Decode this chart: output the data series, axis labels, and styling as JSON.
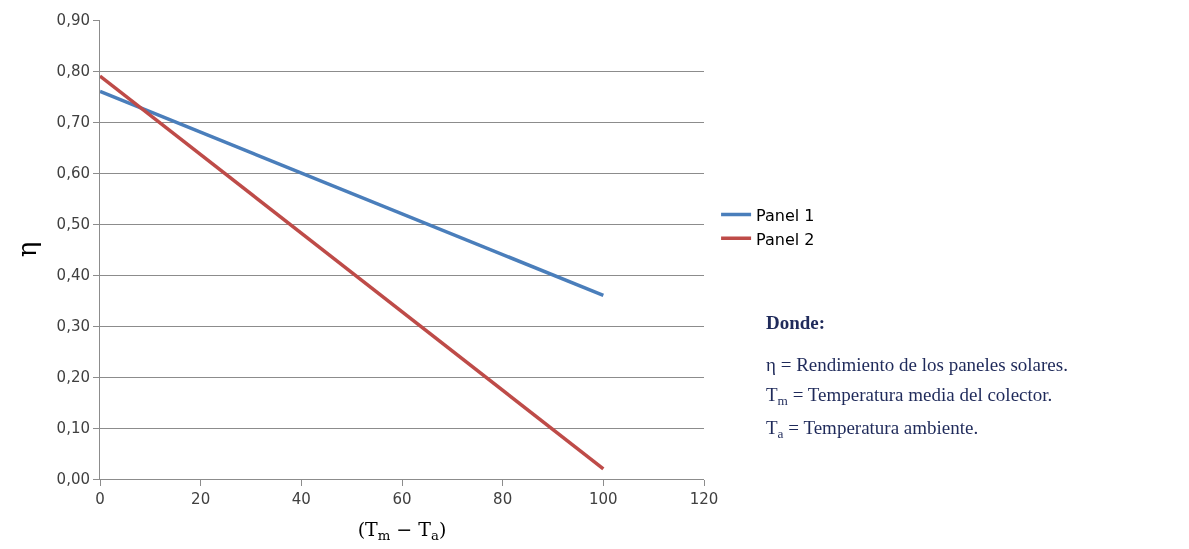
{
  "chart_data": {
    "type": "line",
    "xlabel": "(T$_{m}$ − T$_{a}$)",
    "ylabel": "η",
    "x": [
      0,
      100
    ],
    "series": [
      {
        "name": "Panel 1",
        "color": "#4a7ebb",
        "values": [
          0.76,
          0.36
        ]
      },
      {
        "name": "Panel 2",
        "color": "#be4b48",
        "values": [
          0.79,
          0.02
        ]
      }
    ],
    "xlim": [
      0,
      120
    ],
    "xticks": [
      0,
      20,
      40,
      60,
      80,
      100,
      120
    ],
    "ylim": [
      0,
      0.9
    ],
    "yticks": [
      {
        "value": 0,
        "label": "0,00"
      },
      {
        "value": 0.1,
        "label": "0,10"
      },
      {
        "value": 0.2,
        "label": "0,20"
      },
      {
        "value": 0.3,
        "label": "0,30"
      },
      {
        "value": 0.4,
        "label": "0,40"
      },
      {
        "value": 0.5,
        "label": "0,50"
      },
      {
        "value": 0.6,
        "label": "0,60"
      },
      {
        "value": 0.7,
        "label": "0,70"
      },
      {
        "value": 0.8,
        "label": "0,80"
      },
      {
        "value": 0.9,
        "label": "0,90"
      }
    ],
    "grid": "y",
    "legend": "right",
    "marker": "none",
    "line_style": "solid",
    "annotations": [
      "Donde:",
      "η = Rendimiento de los paneles solares.",
      "T$_{m}$ = Temperatura media del colector.",
      "T$_{a}$ = Temperatura ambiente."
    ]
  }
}
